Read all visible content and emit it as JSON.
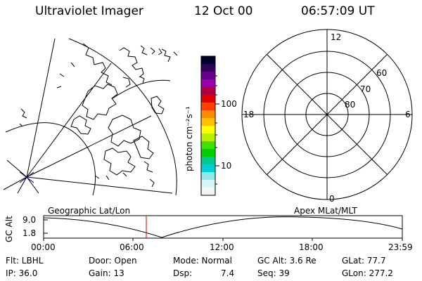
{
  "header": {
    "instrument": "Ultraviolet Imager",
    "date": "12 Oct 00",
    "time": "06:57:09 UT"
  },
  "colorbar": {
    "unit_label": "photon cm⁻²s⁻¹",
    "tick_100": "100",
    "tick_10": "10",
    "colors": [
      "#000030",
      "#30005a",
      "#6a0090",
      "#9a00b0",
      "#b00040",
      "#e00000",
      "#ff4000",
      "#ff8c00",
      "#ffc000",
      "#ffff00",
      "#b8f000",
      "#40e000",
      "#00d000",
      "#00c890",
      "#00d0d0",
      "#90e8e8",
      "#d8f4f4",
      "#f4f4f4"
    ]
  },
  "left_map": {
    "label": "Geographic Lat/Lon"
  },
  "polar": {
    "label": "Apex MLat/MLT",
    "mlt_top": "12",
    "mlt_left": "18",
    "mlt_right": "6",
    "mlt_bottom": "0",
    "lat_60": "60",
    "lat_70": "70",
    "lat_80": "80"
  },
  "altitude_plot": {
    "axis_label": "GC Alt",
    "y_max": "9.0",
    "y_min": "1.8",
    "x_ticks": [
      "00:00",
      "06:00",
      "12:00",
      "18:00",
      "23:59"
    ],
    "marker_color": "#cc0000"
  },
  "info": {
    "flt": "Flt: LBHL",
    "ip": "IP: 36.0",
    "door": "Door: Open",
    "gain": "Gain: 13",
    "mode": "Mode: Normal",
    "dsp_label": "Dsp:",
    "dsp_value": "7.4",
    "gc_alt": "GC Alt: 3.6 Re",
    "seq": "Seq: 39",
    "glat": "GLat:  77.7",
    "glon": "GLon: 277.2"
  }
}
